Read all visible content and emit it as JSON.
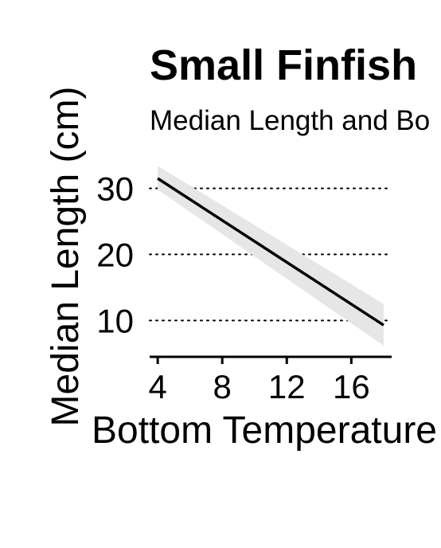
{
  "chart_data": {
    "type": "line",
    "title": "Small Finfish",
    "subtitle": "Median Length and Bo",
    "xlabel": "Bottom Temperature",
    "ylabel": "Median Length (cm)",
    "xlim": [
      3.5,
      18.5
    ],
    "ylim": [
      4.5,
      35
    ],
    "x_ticks": [
      4,
      8,
      12,
      16
    ],
    "y_ticks": [
      10,
      20,
      30
    ],
    "grid": "horizontal-dotted",
    "series": [
      {
        "x": [
          4,
          18
        ],
        "y": [
          31.5,
          9.3
        ],
        "ci_lower": [
          29.8,
          6.2
        ],
        "ci_upper": [
          33.4,
          12.5
        ],
        "line_color": "#000000",
        "band_color": "#e6e6e6"
      }
    ]
  }
}
